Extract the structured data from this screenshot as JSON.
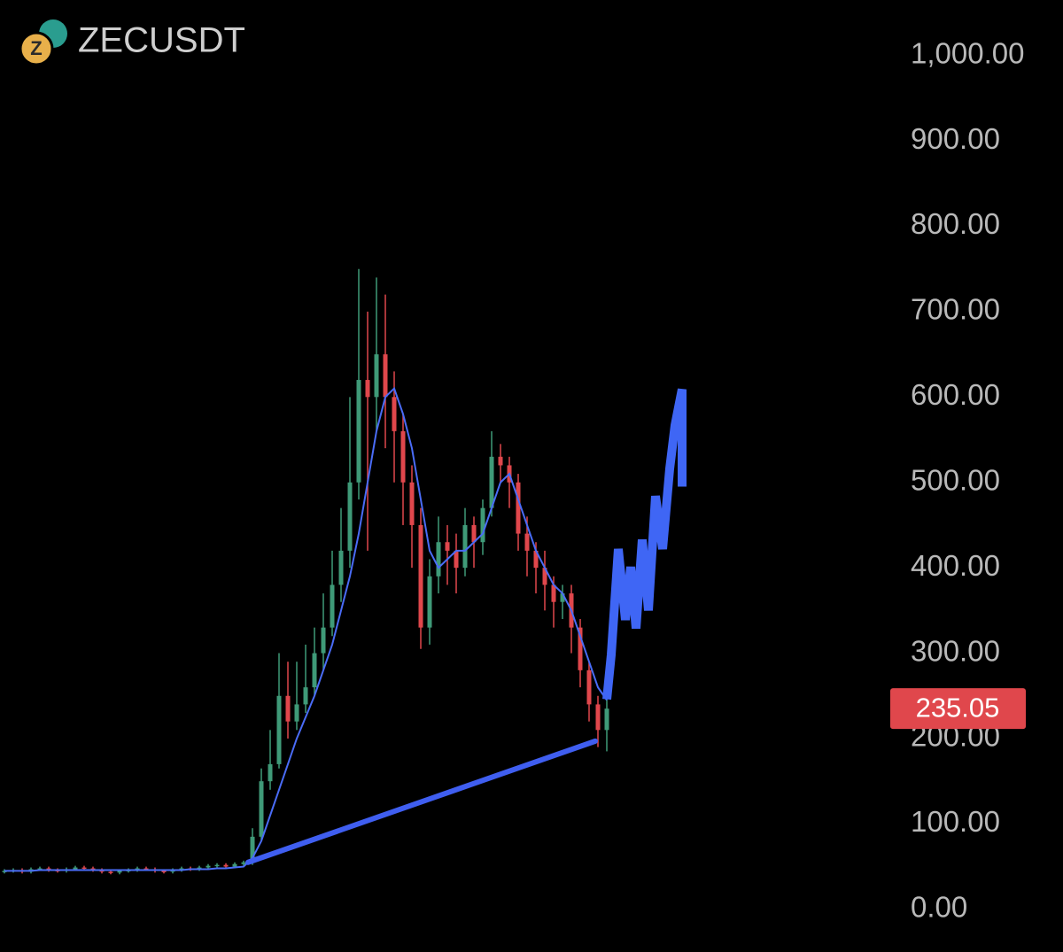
{
  "chart_data": {
    "type": "candlestick",
    "title": "ZECUSDT",
    "ylim": [
      -50,
      1065
    ],
    "yticks": [
      {
        "value": 1000,
        "label": "1,000.00"
      },
      {
        "value": 900,
        "label": "900.00"
      },
      {
        "value": 800,
        "label": "800.00"
      },
      {
        "value": 700,
        "label": "700.00"
      },
      {
        "value": 600,
        "label": "600.00"
      },
      {
        "value": 500,
        "label": "500.00"
      },
      {
        "value": 400,
        "label": "400.00"
      },
      {
        "value": 300,
        "label": "300.00"
      },
      {
        "value": 200,
        "label": "200.00"
      },
      {
        "value": 100,
        "label": "100.00"
      },
      {
        "value": 0,
        "label": "0.00"
      }
    ],
    "up_color": "#3f9a78",
    "down_color": "#e0474c",
    "open": [
      44,
      45,
      46,
      44,
      47,
      48,
      46,
      45,
      47,
      49,
      48,
      46,
      44,
      43,
      45,
      46,
      48,
      47,
      45,
      44,
      46,
      48,
      47,
      49,
      51,
      52,
      50,
      53,
      55,
      85,
      150,
      170,
      250,
      220,
      240,
      260,
      300,
      330,
      380,
      420,
      500,
      620,
      600,
      650,
      600,
      560,
      500,
      450,
      330,
      390,
      430,
      420,
      400,
      450,
      430,
      470,
      530,
      520,
      500,
      440,
      420,
      400,
      380,
      360,
      370,
      330,
      280,
      240,
      210
    ],
    "high": [
      47,
      48,
      48,
      49,
      50,
      50,
      48,
      49,
      51,
      51,
      50,
      48,
      46,
      47,
      48,
      50,
      50,
      49,
      47,
      48,
      50,
      50,
      51,
      53,
      54,
      54,
      55,
      57,
      95,
      165,
      210,
      300,
      290,
      290,
      310,
      330,
      370,
      420,
      470,
      600,
      750,
      700,
      740,
      720,
      630,
      580,
      520,
      470,
      410,
      460,
      450,
      440,
      470,
      460,
      480,
      560,
      545,
      530,
      510,
      460,
      430,
      420,
      390,
      380,
      380,
      340,
      290,
      250,
      250
    ],
    "low": [
      42,
      43,
      42,
      42,
      45,
      44,
      43,
      43,
      45,
      46,
      44,
      42,
      41,
      41,
      43,
      44,
      45,
      43,
      42,
      42,
      44,
      45,
      45,
      47,
      49,
      48,
      48,
      51,
      52,
      80,
      140,
      165,
      200,
      210,
      230,
      250,
      280,
      320,
      360,
      400,
      480,
      420,
      560,
      540,
      500,
      450,
      400,
      305,
      310,
      370,
      380,
      370,
      390,
      400,
      415,
      460,
      500,
      470,
      420,
      390,
      370,
      350,
      330,
      340,
      300,
      260,
      220,
      190,
      185
    ],
    "close": [
      45,
      46,
      44,
      47,
      48,
      46,
      45,
      47,
      49,
      48,
      46,
      44,
      43,
      45,
      46,
      48,
      47,
      45,
      44,
      46,
      48,
      47,
      49,
      51,
      52,
      50,
      53,
      55,
      85,
      150,
      170,
      250,
      220,
      240,
      260,
      300,
      330,
      380,
      420,
      500,
      620,
      600,
      650,
      600,
      560,
      500,
      450,
      330,
      390,
      430,
      420,
      400,
      450,
      430,
      470,
      530,
      520,
      500,
      440,
      420,
      400,
      380,
      360,
      370,
      330,
      280,
      240,
      210,
      235
    ],
    "ma": {
      "color": "#4a6cf7",
      "values": [
        45,
        45,
        45,
        45,
        46,
        46,
        46,
        46,
        46,
        46,
        46,
        46,
        46,
        46,
        46,
        46,
        46,
        46,
        46,
        46,
        46,
        47,
        47,
        47,
        48,
        48,
        49,
        50,
        60,
        80,
        110,
        140,
        170,
        200,
        225,
        250,
        280,
        310,
        350,
        390,
        440,
        500,
        560,
        600,
        610,
        580,
        540,
        480,
        420,
        400,
        410,
        420,
        420,
        430,
        440,
        470,
        500,
        510,
        480,
        450,
        420,
        400,
        380,
        370,
        350,
        320,
        290,
        260,
        245
      ]
    },
    "trendline": {
      "color": "#3f5ef0",
      "x": [
        27.5,
        66.7
      ],
      "values": [
        55,
        197
      ]
    },
    "projection": {
      "color": "#3f66f5",
      "x": [
        68,
        68.5,
        69.3,
        70.1,
        70.7,
        71.3,
        72,
        72.7,
        73.5,
        74.3,
        75.1,
        75.7,
        76.5,
        76.5
      ],
      "values": [
        246,
        298,
        422,
        339,
        401,
        329,
        433,
        350,
        484,
        422,
        516,
        567,
        609,
        495
      ]
    },
    "last_price": 235.05,
    "last_price_color": "#e0474c"
  }
}
